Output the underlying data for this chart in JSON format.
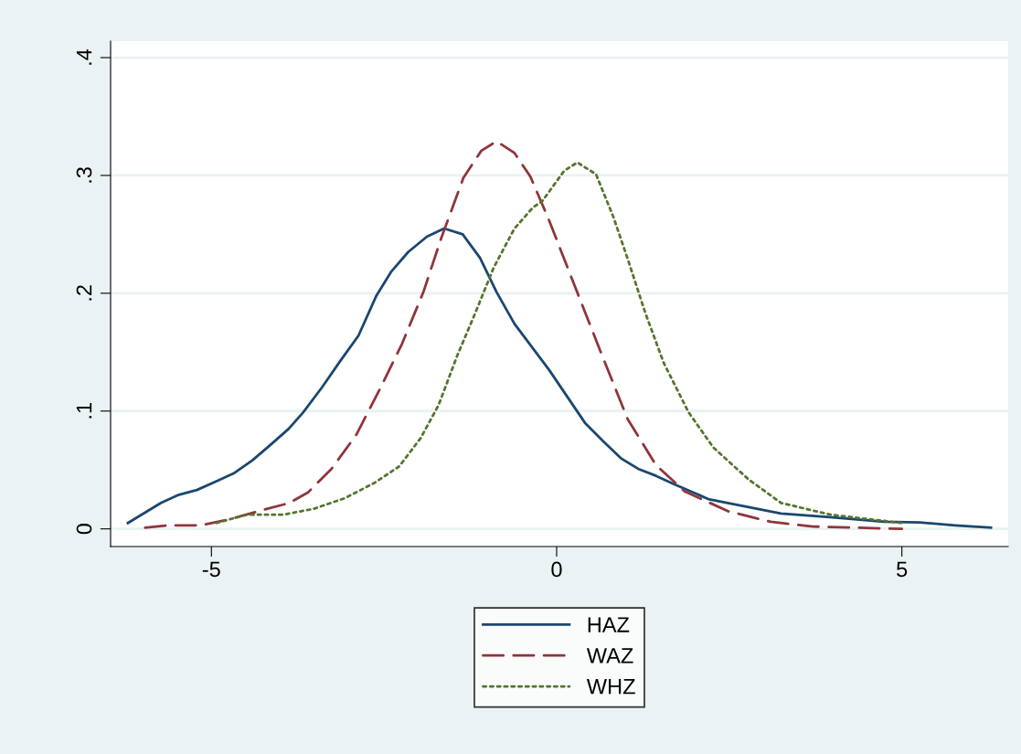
{
  "chart_data": {
    "type": "line",
    "xlim": [
      -6.46,
      6.54
    ],
    "ylim": [
      -0.015,
      0.414
    ],
    "xticks": [
      -5,
      0,
      5
    ],
    "yticks": [
      {
        "value": 0,
        "label": "0"
      },
      {
        "value": 0.1,
        "label": ".1"
      },
      {
        "value": 0.2,
        "label": ".2"
      },
      {
        "value": 0.3,
        "label": ".3"
      },
      {
        "value": 0.4,
        "label": ".4"
      }
    ],
    "grid": "y",
    "legend": "bottom",
    "marker": "none",
    "series": [
      {
        "name": "HAZ",
        "color": "#1a476f",
        "line_style": "solid",
        "x": [
          -6.21,
          -5.73,
          -5.47,
          -5.21,
          -4.94,
          -4.68,
          -4.41,
          -4.15,
          -3.88,
          -3.67,
          -3.4,
          -3.14,
          -2.87,
          -2.61,
          -2.4,
          -2.15,
          -1.88,
          -1.63,
          -1.36,
          -1.11,
          -0.87,
          -0.61,
          -0.11,
          0.41,
          0.68,
          0.93,
          1.18,
          1.44,
          1.7,
          2.21,
          2.73,
          3.25,
          3.96,
          4.74,
          5.26,
          5.77,
          6.29
        ],
        "values": [
          0.005,
          0.022,
          0.029,
          0.033,
          0.04,
          0.047,
          0.058,
          0.071,
          0.085,
          0.099,
          0.12,
          0.142,
          0.164,
          0.198,
          0.218,
          0.235,
          0.248,
          0.255,
          0.25,
          0.23,
          0.201,
          0.174,
          0.135,
          0.09,
          0.074,
          0.06,
          0.051,
          0.045,
          0.038,
          0.025,
          0.019,
          0.013,
          0.01,
          0.006,
          0.0055,
          0.003,
          0.001
        ]
      },
      {
        "name": "WAZ",
        "color": "#90353b",
        "line_style": "dashed",
        "x": [
          -5.96,
          -5.64,
          -5.15,
          -4.75,
          -4.32,
          -3.87,
          -3.6,
          -3.26,
          -2.9,
          -2.54,
          -2.24,
          -1.93,
          -1.67,
          -1.35,
          -1.09,
          -0.87,
          -0.61,
          -0.38,
          -0.11,
          0.25,
          0.68,
          1.03,
          1.44,
          1.85,
          2.48,
          3.1,
          3.71,
          5.0
        ],
        "values": [
          0.001,
          0.003,
          0.003,
          0.008,
          0.015,
          0.022,
          0.031,
          0.051,
          0.08,
          0.121,
          0.157,
          0.201,
          0.247,
          0.298,
          0.321,
          0.329,
          0.319,
          0.299,
          0.262,
          0.208,
          0.144,
          0.093,
          0.054,
          0.032,
          0.015,
          0.006,
          0.002,
          0.0
        ]
      },
      {
        "name": "WHZ",
        "color": "#55752f",
        "line_style": "dotted",
        "x": [
          -4.93,
          -4.49,
          -3.96,
          -3.52,
          -3.07,
          -2.64,
          -2.28,
          -1.97,
          -1.71,
          -1.44,
          -1.18,
          -0.91,
          -0.61,
          -0.34,
          -0.21,
          0.11,
          0.3,
          0.57,
          0.82,
          1.03,
          1.28,
          1.55,
          1.91,
          2.27,
          2.78,
          3.25,
          3.97,
          5.0
        ],
        "values": [
          0.005,
          0.012,
          0.012,
          0.017,
          0.026,
          0.039,
          0.053,
          0.077,
          0.105,
          0.147,
          0.183,
          0.222,
          0.255,
          0.273,
          0.278,
          0.304,
          0.311,
          0.301,
          0.265,
          0.229,
          0.184,
          0.141,
          0.099,
          0.069,
          0.042,
          0.022,
          0.012,
          0.005
        ]
      }
    ]
  }
}
